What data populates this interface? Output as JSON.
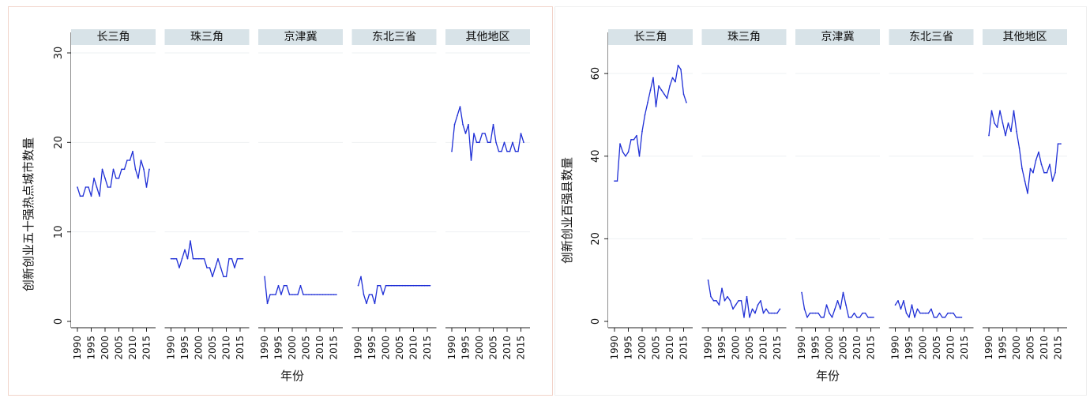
{
  "chart_data": [
    {
      "type": "line",
      "ylabel": "创新创业五十强热点城市数量",
      "xlabel": "年份",
      "ylim": [
        0,
        30
      ],
      "yticks": [
        0,
        10,
        20,
        30
      ],
      "xticks": [
        1990,
        1995,
        2000,
        2005,
        2010,
        2015
      ],
      "xlim": [
        1990,
        2016
      ],
      "line_color": "#1f2fd6",
      "strip_color": "#d8e3e8",
      "grid": true,
      "panels": [
        {
          "name": "长三角",
          "x": [
            1990,
            1991,
            1992,
            1993,
            1994,
            1995,
            1996,
            1997,
            1998,
            1999,
            2000,
            2001,
            2002,
            2003,
            2004,
            2005,
            2006,
            2007,
            2008,
            2009,
            2010,
            2011,
            2012,
            2013,
            2014,
            2015,
            2016
          ],
          "y": [
            15,
            14,
            14,
            15,
            15,
            14,
            16,
            15,
            14,
            17,
            16,
            15,
            15,
            17,
            16,
            16,
            17,
            17,
            18,
            18,
            19,
            17,
            16,
            18,
            17,
            15,
            17
          ]
        },
        {
          "name": "珠三角",
          "x": [
            1990,
            1991,
            1992,
            1993,
            1994,
            1995,
            1996,
            1997,
            1998,
            1999,
            2000,
            2001,
            2002,
            2003,
            2004,
            2005,
            2006,
            2007,
            2008,
            2009,
            2010,
            2011,
            2012,
            2013,
            2014,
            2015,
            2016
          ],
          "y": [
            7,
            7,
            7,
            6,
            7,
            8,
            7,
            9,
            7,
            7,
            7,
            7,
            7,
            6,
            6,
            5,
            6,
            7,
            6,
            5,
            5,
            7,
            7,
            6,
            7,
            7,
            7
          ]
        },
        {
          "name": "京津冀",
          "x": [
            1990,
            1991,
            1992,
            1993,
            1994,
            1995,
            1996,
            1997,
            1998,
            1999,
            2000,
            2001,
            2002,
            2003,
            2004,
            2005,
            2006,
            2007,
            2008,
            2009,
            2010,
            2011,
            2012,
            2013,
            2014,
            2015,
            2016
          ],
          "y": [
            5,
            2,
            3,
            3,
            3,
            4,
            3,
            4,
            4,
            3,
            3,
            3,
            3,
            4,
            3,
            3,
            3,
            3,
            3,
            3,
            3,
            3,
            3,
            3,
            3,
            3,
            3
          ]
        },
        {
          "name": "东北三省",
          "x": [
            1990,
            1991,
            1992,
            1993,
            1994,
            1995,
            1996,
            1997,
            1998,
            1999,
            2000,
            2001,
            2002,
            2003,
            2004,
            2005,
            2006,
            2007,
            2008,
            2009,
            2010,
            2011,
            2012,
            2013,
            2014,
            2015,
            2016
          ],
          "y": [
            4,
            5,
            3,
            2,
            3,
            3,
            2,
            4,
            4,
            3,
            4,
            4,
            4,
            4,
            4,
            4,
            4,
            4,
            4,
            4,
            4,
            4,
            4,
            4,
            4,
            4,
            4
          ]
        },
        {
          "name": "其他地区",
          "x": [
            1990,
            1991,
            1992,
            1993,
            1994,
            1995,
            1996,
            1997,
            1998,
            1999,
            2000,
            2001,
            2002,
            2003,
            2004,
            2005,
            2006,
            2007,
            2008,
            2009,
            2010,
            2011,
            2012,
            2013,
            2014,
            2015,
            2016
          ],
          "y": [
            19,
            22,
            23,
            24,
            22,
            21,
            22,
            18,
            21,
            20,
            20,
            21,
            21,
            20,
            20,
            22,
            20,
            19,
            19,
            20,
            19,
            19,
            20,
            19,
            19,
            21,
            20
          ]
        }
      ]
    },
    {
      "type": "line",
      "ylabel": "创新创业百强县数量",
      "xlabel": "年份",
      "ylim": [
        0,
        65
      ],
      "yticks": [
        0,
        20,
        40,
        60
      ],
      "xticks": [
        1990,
        1995,
        2000,
        2005,
        2010,
        2015
      ],
      "xlim": [
        1990,
        2016
      ],
      "line_color": "#1f2fd6",
      "strip_color": "#d8e3e8",
      "grid": true,
      "panels": [
        {
          "name": "长三角",
          "x": [
            1990,
            1991,
            1992,
            1993,
            1994,
            1995,
            1996,
            1997,
            1998,
            1999,
            2000,
            2001,
            2002,
            2003,
            2004,
            2005,
            2006,
            2007,
            2008,
            2009,
            2010,
            2011,
            2012,
            2013,
            2014,
            2015,
            2016
          ],
          "y": [
            34,
            34,
            43,
            41,
            40,
            41,
            44,
            44,
            45,
            40,
            46,
            50,
            53,
            56,
            59,
            52,
            57,
            56,
            55,
            54,
            57,
            59,
            58,
            62,
            61,
            55,
            53
          ]
        },
        {
          "name": "珠三角",
          "x": [
            1990,
            1991,
            1992,
            1993,
            1994,
            1995,
            1996,
            1997,
            1998,
            1999,
            2000,
            2001,
            2002,
            2003,
            2004,
            2005,
            2006,
            2007,
            2008,
            2009,
            2010,
            2011,
            2012,
            2013,
            2014,
            2015,
            2016
          ],
          "y": [
            10,
            6,
            5,
            5,
            4,
            8,
            5,
            6,
            5,
            3,
            4,
            5,
            5,
            1,
            6,
            1,
            3,
            2,
            4,
            5,
            2,
            3,
            2,
            2,
            2,
            2,
            3
          ]
        },
        {
          "name": "京津冀",
          "x": [
            1990,
            1991,
            1992,
            1993,
            1994,
            1995,
            1996,
            1997,
            1998,
            1999,
            2000,
            2001,
            2002,
            2003,
            2004,
            2005,
            2006,
            2007,
            2008,
            2009,
            2010,
            2011,
            2012,
            2013,
            2014,
            2015,
            2016
          ],
          "y": [
            7,
            3,
            1,
            2,
            2,
            2,
            2,
            1,
            1,
            4,
            2,
            1,
            3,
            5,
            3,
            7,
            4,
            1,
            1,
            2,
            1,
            1,
            2,
            2,
            1,
            1,
            1
          ]
        },
        {
          "name": "东北三省",
          "x": [
            1990,
            1991,
            1992,
            1993,
            1994,
            1995,
            1996,
            1997,
            1998,
            1999,
            2000,
            2001,
            2002,
            2003,
            2004,
            2005,
            2006,
            2007,
            2008,
            2009,
            2010,
            2011,
            2012,
            2013,
            2014
          ],
          "y": [
            4,
            5,
            3,
            5,
            2,
            1,
            4,
            1,
            3,
            2,
            2,
            2,
            2,
            3,
            1,
            1,
            2,
            1,
            1,
            2,
            2,
            2,
            1,
            1,
            1
          ]
        },
        {
          "name": "其他地区",
          "x": [
            1990,
            1991,
            1992,
            1993,
            1994,
            1995,
            1996,
            1997,
            1998,
            1999,
            2000,
            2001,
            2002,
            2003,
            2004,
            2005,
            2006,
            2007,
            2008,
            2009,
            2010,
            2011,
            2012,
            2013,
            2014,
            2015,
            2016
          ],
          "y": [
            45,
            51,
            48,
            47,
            51,
            48,
            45,
            48,
            46,
            51,
            46,
            42,
            37,
            34,
            31,
            37,
            36,
            39,
            41,
            38,
            36,
            36,
            38,
            34,
            36,
            43,
            43
          ]
        }
      ]
    }
  ]
}
